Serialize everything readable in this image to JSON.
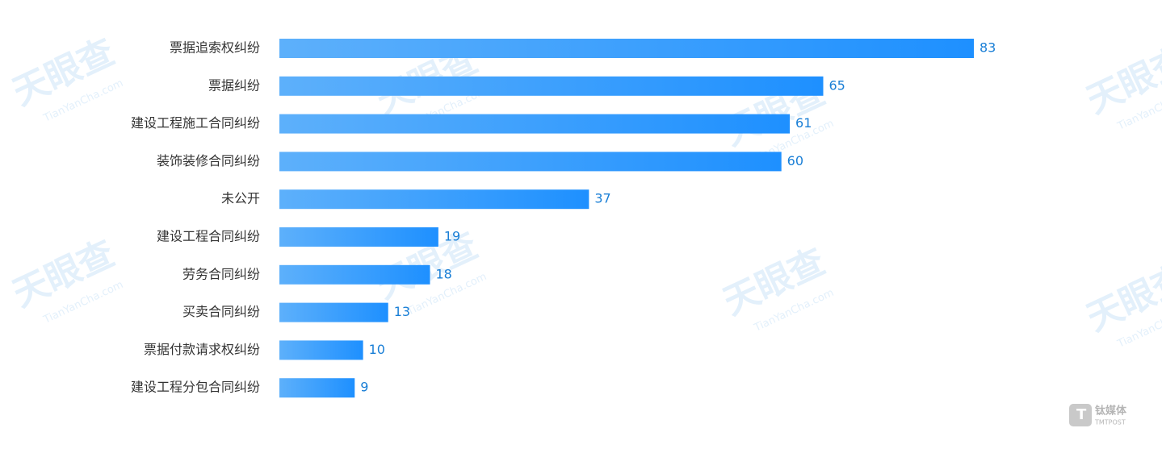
{
  "chart_data": {
    "type": "bar",
    "orientation": "horizontal",
    "categories": [
      "票据追索权纠纷",
      "票据纠纷",
      "建设工程施工合同纠纷",
      "装饰装修合同纠纷",
      "未公开",
      "建设工程合同纠纷",
      "劳务合同纠纷",
      "买卖合同纠纷",
      "票据付款请求权纠纷",
      "建设工程分包合同纠纷"
    ],
    "values": [
      83,
      65,
      61,
      60,
      37,
      19,
      18,
      13,
      10,
      9
    ],
    "color": "#1e90ff",
    "color_start": "#5db0fb",
    "value_label_color": "#1a7fd6",
    "watermark": "天眼查",
    "watermark_sub": "TianYanCha.com",
    "logo": "钛媒体",
    "logo_sub": "TMTPOST"
  }
}
